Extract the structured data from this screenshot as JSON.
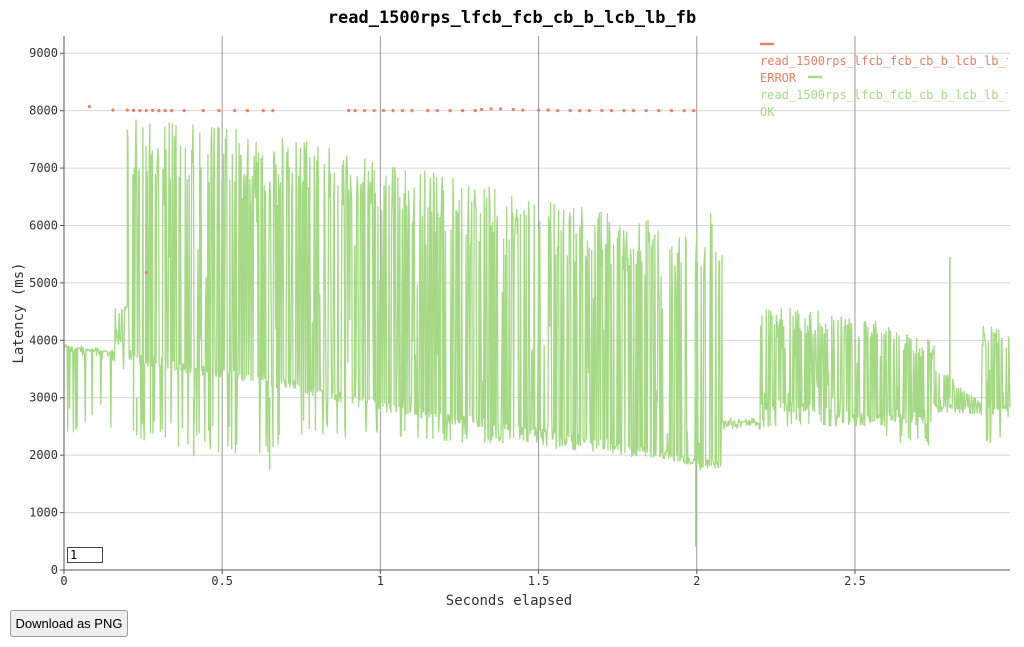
{
  "chart_data": {
    "type": "line",
    "title": "read_1500rps_lfcb_fcb_cb_b_lcb_lb_fb",
    "xlabel": "Seconds elapsed",
    "ylabel": "Latency (ms)",
    "xlim": [
      0,
      2.99
    ],
    "ylim": [
      0,
      9300
    ],
    "x_ticks": [
      "0",
      "0.5",
      "1",
      "1.5",
      "2",
      "2.5"
    ],
    "y_ticks": [
      "0",
      "1000",
      "2000",
      "3000",
      "4000",
      "5000",
      "6000",
      "7000",
      "8000",
      "9000"
    ],
    "grid": true,
    "legend_position": "top-right",
    "series": [
      {
        "name": "read_1500rps_lfcb_fcb_cb_b_lcb_lb_fb ERROR",
        "color": "#e4826a",
        "style": "points",
        "points": [
          [
            0.08,
            8070
          ],
          [
            0.155,
            8010
          ],
          [
            0.2,
            8010
          ],
          [
            0.22,
            8005
          ],
          [
            0.24,
            8000
          ],
          [
            0.26,
            8000
          ],
          [
            0.28,
            8005
          ],
          [
            0.3,
            8000
          ],
          [
            0.32,
            8000
          ],
          [
            0.34,
            8000
          ],
          [
            0.38,
            8000
          ],
          [
            0.44,
            8000
          ],
          [
            0.49,
            8000
          ],
          [
            0.54,
            8000
          ],
          [
            0.58,
            8000
          ],
          [
            0.63,
            8000
          ],
          [
            0.66,
            8000
          ],
          [
            0.9,
            8000
          ],
          [
            0.92,
            8000
          ],
          [
            0.95,
            8000
          ],
          [
            0.98,
            8000
          ],
          [
            1.01,
            8000
          ],
          [
            1.04,
            8000
          ],
          [
            1.07,
            8000
          ],
          [
            1.1,
            8000
          ],
          [
            1.15,
            8000
          ],
          [
            1.18,
            8000
          ],
          [
            1.22,
            8000
          ],
          [
            1.26,
            8000
          ],
          [
            1.3,
            8000
          ],
          [
            1.32,
            8020
          ],
          [
            1.35,
            8030
          ],
          [
            1.38,
            8030
          ],
          [
            1.42,
            8020
          ],
          [
            1.45,
            8010
          ],
          [
            1.5,
            8010
          ],
          [
            1.53,
            8010
          ],
          [
            1.56,
            8000
          ],
          [
            1.6,
            8000
          ],
          [
            1.63,
            8000
          ],
          [
            1.66,
            8000
          ],
          [
            1.7,
            8000
          ],
          [
            1.73,
            8000
          ],
          [
            1.77,
            8000
          ],
          [
            1.8,
            8000
          ],
          [
            1.84,
            8000
          ],
          [
            1.88,
            8000
          ],
          [
            1.92,
            8000
          ],
          [
            1.96,
            8000
          ],
          [
            1.99,
            8000
          ],
          [
            0.26,
            5180
          ]
        ]
      },
      {
        "name": "read_1500rps_lfcb_fcb_cb_b_lcb_lb_fb OK",
        "color": "#a6d986",
        "style": "envelope",
        "segments": [
          {
            "x": [
              0.0,
              0.16
            ],
            "base": [
              3850,
              3750
            ],
            "low": [
              2300,
              2300
            ],
            "high": [
              3900,
              3800
            ]
          },
          {
            "x": [
              0.16,
              0.2
            ],
            "base": [
              4000,
              3950
            ],
            "low": [
              3500,
              3500
            ],
            "high": [
              4600,
              4650
            ]
          },
          {
            "x": [
              0.2,
              0.7
            ],
            "base": [
              3700,
              3250
            ],
            "low": [
              2150,
              1980
            ],
            "high": [
              7950,
              7550
            ]
          },
          {
            "x": [
              0.7,
              1.0
            ],
            "base": [
              3250,
              2850
            ],
            "low": [
              2300,
              2300
            ],
            "high": [
              7550,
              7150
            ]
          },
          {
            "x": [
              1.0,
              1.5
            ],
            "base": [
              2850,
              2400
            ],
            "low": [
              2250,
              2200
            ],
            "high": [
              7150,
              6450
            ]
          },
          {
            "x": [
              1.5,
              2.0
            ],
            "base": [
              2400,
              1900
            ],
            "low": [
              2150,
              1850
            ],
            "high": [
              6450,
              5950
            ]
          },
          {
            "x": [
              2.0,
              2.08
            ],
            "base": [
              1900,
              1800
            ],
            "low": [
              1750,
              1750
            ],
            "high": [
              6250,
              6200
            ]
          },
          {
            "x": [
              2.08,
              2.2
            ],
            "base": [
              2550,
              2550
            ],
            "low": [
              2550,
              2500
            ],
            "high": [
              2600,
              2580
            ]
          },
          {
            "x": [
              2.2,
              2.35
            ],
            "base": [
              2900,
              2800
            ],
            "low": [
              2500,
              2500
            ],
            "high": [
              4600,
              4550
            ]
          },
          {
            "x": [
              2.35,
              2.6
            ],
            "base": [
              2800,
              2600
            ],
            "low": [
              2500,
              2500
            ],
            "high": [
              4550,
              4300
            ]
          },
          {
            "x": [
              2.6,
              2.75
            ],
            "base": [
              2650,
              2550
            ],
            "low": [
              2200,
              2150
            ],
            "high": [
              4250,
              4000
            ]
          },
          {
            "x": [
              2.75,
              2.9
            ],
            "base": [
              2850,
              2800
            ],
            "low": [
              2700,
              2700
            ],
            "high": [
              3600,
              2900
            ]
          },
          {
            "x": [
              2.9,
              2.99
            ],
            "base": [
              2800,
              2750
            ],
            "low": [
              2150,
              2100
            ],
            "high": [
              4250,
              4200
            ]
          }
        ],
        "spikes": [
          [
            0.65,
            1750
          ],
          [
            1.997,
            400
          ],
          [
            2.8,
            5450
          ],
          [
            0.23,
            2350
          ],
          [
            0.41,
            1980
          ]
        ]
      }
    ]
  },
  "legend": {
    "error_label": "read_1500rps_lfcb_fcb_cb_b_lcb_lb_fb\nERROR",
    "ok_label": "read_1500rps_lfcb_fcb_cb_b_lcb_lb_fb\nOK"
  },
  "controls": {
    "smoothing_value": "1",
    "download_label": "Download as PNG"
  }
}
